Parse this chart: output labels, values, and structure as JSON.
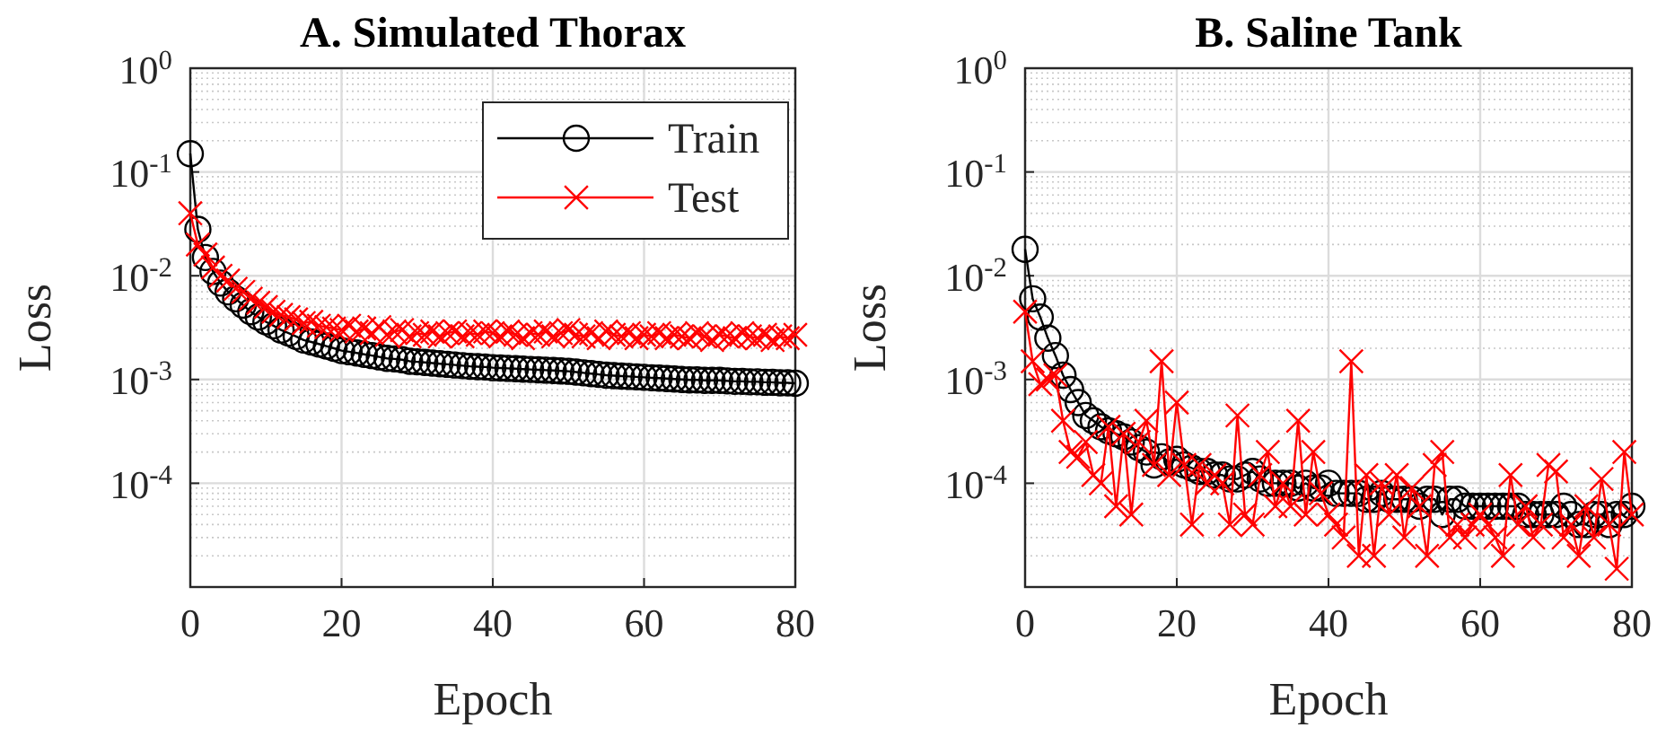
{
  "chart_data": [
    {
      "type": "line",
      "title": "A. Simulated Thorax",
      "xlabel": "Epoch",
      "ylabel": "Loss",
      "log": "y",
      "grid": true,
      "legend": "top right",
      "line_style": "solid",
      "x": [
        0,
        1,
        2,
        3,
        4,
        5,
        6,
        7,
        8,
        9,
        10,
        11,
        12,
        13,
        14,
        15,
        16,
        17,
        18,
        19,
        20,
        21,
        22,
        23,
        24,
        25,
        26,
        27,
        28,
        29,
        30,
        31,
        32,
        33,
        34,
        35,
        36,
        37,
        38,
        39,
        40,
        41,
        42,
        43,
        44,
        45,
        46,
        47,
        48,
        49,
        50,
        51,
        52,
        53,
        54,
        55,
        56,
        57,
        58,
        59,
        60,
        61,
        62,
        63,
        64,
        65,
        66,
        67,
        68,
        69,
        70,
        71,
        72,
        73,
        74,
        75,
        76,
        77,
        78,
        79,
        80
      ],
      "xlim": [
        0,
        80
      ],
      "xticks": [
        0,
        20,
        40,
        60,
        80
      ],
      "ylim": [
        1e-05,
        1
      ],
      "yticks": [
        {
          "value": 0.0001,
          "label": "10$^{-4}$"
        },
        {
          "value": 0.001,
          "label": "10$^{-3}$"
        },
        {
          "value": 0.01,
          "label": "10$^{-2}$"
        },
        {
          "value": 0.1,
          "label": "10$^{-1}$"
        },
        {
          "value": 1,
          "label": "10$^{0}$"
        }
      ],
      "series": [
        {
          "name": "Train",
          "color": "#000000",
          "marker": "circle",
          "values": [
            0.15,
            0.028,
            0.015,
            0.011,
            0.0085,
            0.007,
            0.006,
            0.0052,
            0.0045,
            0.004,
            0.0036,
            0.0033,
            0.003,
            0.0028,
            0.0026,
            0.0024,
            0.0023,
            0.0022,
            0.0021,
            0.002,
            0.0019,
            0.00185,
            0.0018,
            0.00175,
            0.0017,
            0.00165,
            0.0016,
            0.00158,
            0.00155,
            0.0015,
            0.00148,
            0.00146,
            0.00144,
            0.00142,
            0.0014,
            0.00138,
            0.00136,
            0.00134,
            0.00133,
            0.00132,
            0.0013,
            0.00129,
            0.00128,
            0.00127,
            0.00126,
            0.00125,
            0.00124,
            0.00123,
            0.00122,
            0.00121,
            0.0012,
            0.00118,
            0.00116,
            0.00114,
            0.00112,
            0.0011,
            0.00109,
            0.00108,
            0.00107,
            0.00106,
            0.00105,
            0.00104,
            0.00103,
            0.00102,
            0.00101,
            0.001,
            0.00099,
            0.00099,
            0.00098,
            0.00098,
            0.00098,
            0.00097,
            0.00096,
            0.00096,
            0.00095,
            0.00095,
            0.00094,
            0.00094,
            0.00093,
            0.00093,
            0.00092
          ]
        },
        {
          "name": "Test",
          "color": "#ff0000",
          "marker": "cross",
          "values": [
            0.04,
            0.02,
            0.016,
            0.012,
            0.01,
            0.009,
            0.0075,
            0.007,
            0.006,
            0.0055,
            0.005,
            0.0045,
            0.0042,
            0.004,
            0.0038,
            0.0035,
            0.0036,
            0.0033,
            0.0032,
            0.0031,
            0.003,
            0.0033,
            0.0029,
            0.0031,
            0.0028,
            0.0032,
            0.0027,
            0.0029,
            0.003,
            0.0026,
            0.0028,
            0.0027,
            0.0029,
            0.0026,
            0.0028,
            0.0029,
            0.0026,
            0.0028,
            0.0027,
            0.0029,
            0.0028,
            0.0026,
            0.0029,
            0.0027,
            0.0025,
            0.0028,
            0.0027,
            0.0029,
            0.0026,
            0.0028,
            0.003,
            0.0027,
            0.0026,
            0.0028,
            0.0025,
            0.0029,
            0.0027,
            0.0026,
            0.0028,
            0.0025,
            0.0027,
            0.0026,
            0.0028,
            0.0025,
            0.0027,
            0.0026,
            0.0025,
            0.0028,
            0.0026,
            0.0024,
            0.0027,
            0.0026,
            0.0025,
            0.0028,
            0.0026,
            0.0025,
            0.0027,
            0.0024,
            0.0026,
            0.0025,
            0.0027
          ]
        }
      ]
    },
    {
      "type": "line",
      "title": "B. Saline Tank",
      "xlabel": "Epoch",
      "ylabel": "Loss",
      "log": "y",
      "grid": true,
      "line_style": "solid",
      "x": [
        0,
        1,
        2,
        3,
        4,
        5,
        6,
        7,
        8,
        9,
        10,
        11,
        12,
        13,
        14,
        15,
        16,
        17,
        18,
        19,
        20,
        21,
        22,
        23,
        24,
        25,
        26,
        27,
        28,
        29,
        30,
        31,
        32,
        33,
        34,
        35,
        36,
        37,
        38,
        39,
        40,
        41,
        42,
        43,
        44,
        45,
        46,
        47,
        48,
        49,
        50,
        51,
        52,
        53,
        54,
        55,
        56,
        57,
        58,
        59,
        60,
        61,
        62,
        63,
        64,
        65,
        66,
        67,
        68,
        69,
        70,
        71,
        72,
        73,
        74,
        75,
        76,
        77,
        78,
        79,
        80
      ],
      "xlim": [
        0,
        80
      ],
      "xticks": [
        0,
        20,
        40,
        60,
        80
      ],
      "ylim": [
        1e-05,
        1
      ],
      "yticks": [
        {
          "value": 0.0001,
          "label": "10$^{-4}$"
        },
        {
          "value": 0.001,
          "label": "10$^{-3}$"
        },
        {
          "value": 0.01,
          "label": "10$^{-2}$"
        },
        {
          "value": 0.1,
          "label": "10$^{-1}$"
        },
        {
          "value": 1,
          "label": "10$^{0}$"
        }
      ],
      "series": [
        {
          "color": "#000000",
          "marker": "circle",
          "values": [
            0.018,
            0.006,
            0.004,
            0.0025,
            0.0017,
            0.0011,
            0.0008,
            0.0006,
            0.00045,
            0.0004,
            0.00035,
            0.00032,
            0.0003,
            0.00028,
            0.00025,
            0.00022,
            0.0002,
            0.00015,
            0.00018,
            0.00016,
            0.00017,
            0.00015,
            0.00014,
            0.00013,
            0.00013,
            0.00012,
            0.00012,
            0.00011,
            0.00011,
            0.00012,
            0.00013,
            0.00011,
            0.0001,
            0.0001,
            0.0001,
            0.0001,
            9e-05,
            0.0001,
            9e-05,
            9e-05,
            0.0001,
            8e-05,
            8e-05,
            8e-05,
            8e-05,
            7e-05,
            7e-05,
            8e-05,
            7e-05,
            7e-05,
            7e-05,
            7e-05,
            6e-05,
            7e-05,
            7e-05,
            5e-05,
            7e-05,
            7e-05,
            6e-05,
            6e-05,
            6e-05,
            6e-05,
            6e-05,
            6e-05,
            6e-05,
            6e-05,
            5e-05,
            5e-05,
            5e-05,
            5e-05,
            5e-05,
            6e-05,
            5e-05,
            4e-05,
            4e-05,
            5e-05,
            5e-05,
            4e-05,
            5e-05,
            5e-05,
            6e-05
          ]
        },
        {
          "color": "#ff0000",
          "marker": "cross",
          "values": [
            0.0045,
            0.0015,
            0.0009,
            0.001,
            0.0011,
            0.0004,
            0.0002,
            0.00018,
            0.00025,
            0.00012,
            0.0001,
            0.00035,
            6e-05,
            0.0003,
            5e-05,
            0.00025,
            0.0004,
            0.00015,
            0.0015,
            0.00012,
            0.0006,
            0.00015,
            4e-05,
            0.00015,
            0.0001,
            0.00012,
            0.0001,
            4e-05,
            0.00045,
            5e-05,
            4e-05,
            0.00012,
            0.0002,
            6e-05,
            0.0001,
            6e-05,
            0.0004,
            5e-05,
            0.0002,
            8e-05,
            5e-05,
            4e-05,
            3e-05,
            0.0015,
            2e-05,
            0.00012,
            2e-05,
            0.0001,
            5e-05,
            0.00012,
            3e-05,
            9e-05,
            6e-05,
            2e-05,
            0.00015,
            0.0002,
            3e-05,
            4e-05,
            3e-05,
            4e-05,
            5e-05,
            4e-05,
            3e-05,
            2e-05,
            0.00012,
            4e-05,
            6e-05,
            3e-05,
            4e-05,
            0.00015,
            0.00013,
            3e-05,
            4e-05,
            2e-05,
            6e-05,
            3e-05,
            0.00011,
            4e-05,
            1.5e-05,
            0.0002,
            5e-05
          ]
        }
      ]
    }
  ]
}
